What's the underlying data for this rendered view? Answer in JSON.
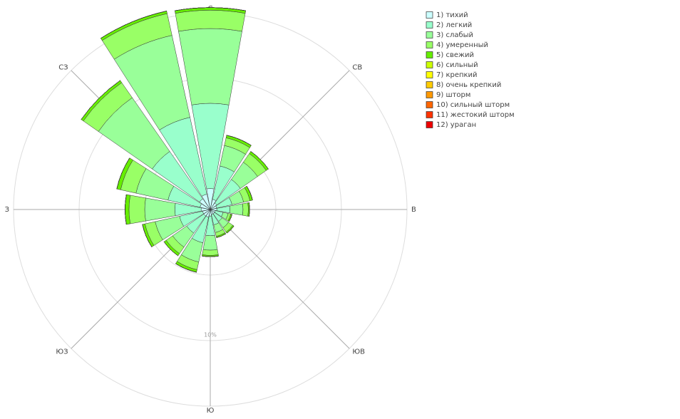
{
  "chart_data": {
    "type": "windrose",
    "categories": [
      "С",
      null,
      "СВ",
      null,
      "В",
      null,
      "ЮВ",
      null,
      "Ю",
      null,
      "ЮЗ",
      null,
      "З",
      null,
      "СЗ",
      null
    ],
    "rlim": [
      0,
      15
    ],
    "rgrid": [
      5,
      10,
      15
    ],
    "rtick_label": {
      "value": 10,
      "label": "10%"
    },
    "legend": "top-right",
    "series": [
      {
        "name": "1) тихий",
        "color": "#ccffff",
        "values": [
          1.6,
          0.8,
          0.6,
          0.5,
          0.5,
          0.4,
          0.4,
          0.4,
          0.5,
          0.6,
          0.6,
          0.6,
          0.7,
          0.8,
          1.0,
          1.2
        ]
      },
      {
        "name": "2) легкий",
        "color": "#99ffcc",
        "values": [
          6.5,
          2.6,
          2.2,
          1.2,
          1.0,
          0.6,
          0.7,
          0.8,
          1.5,
          2.0,
          1.6,
          1.8,
          2.0,
          2.5,
          4.4,
          6.0
        ]
      },
      {
        "name": "3) слабый",
        "color": "#99ff99",
        "values": [
          5.7,
          1.6,
          1.6,
          0.9,
          1.0,
          0.4,
          0.6,
          0.6,
          1.1,
          1.5,
          1.3,
          1.9,
          2.3,
          2.5,
          5.0,
          6.4
        ]
      },
      {
        "name": "4) умеренный",
        "color": "#99ff66",
        "values": [
          1.4,
          0.6,
          0.8,
          0.5,
          0.4,
          0.2,
          0.4,
          0.3,
          0.4,
          0.6,
          0.6,
          0.8,
          1.2,
          1.2,
          1.4,
          1.7
        ]
      },
      {
        "name": "5) свежий",
        "color": "#66ee00",
        "values": [
          0.2,
          0.2,
          0.2,
          0.2,
          0.1,
          0.1,
          0.1,
          0.1,
          0.1,
          0.2,
          0.2,
          0.2,
          0.3,
          0.3,
          0.2,
          0.2
        ]
      },
      {
        "name": "6) сильный",
        "color": "#ccff00",
        "values": [
          0,
          0,
          0,
          0,
          0,
          0,
          0,
          0,
          0,
          0,
          0,
          0,
          0,
          0,
          0,
          0
        ]
      },
      {
        "name": "7) крепкий",
        "color": "#ffff00",
        "values": [
          0,
          0,
          0,
          0,
          0,
          0,
          0,
          0,
          0,
          0,
          0,
          0,
          0,
          0,
          0,
          0
        ]
      },
      {
        "name": "8) очень крепкий",
        "color": "#ffcc00",
        "values": [
          0,
          0,
          0,
          0,
          0,
          0,
          0,
          0,
          0,
          0,
          0,
          0,
          0,
          0,
          0,
          0
        ]
      },
      {
        "name": "9) шторм",
        "color": "#ff9900",
        "values": [
          0,
          0,
          0,
          0,
          0,
          0,
          0,
          0,
          0,
          0,
          0,
          0,
          0,
          0,
          0,
          0
        ]
      },
      {
        "name": "10) сильный шторм",
        "color": "#ff6600",
        "values": [
          0,
          0,
          0,
          0,
          0,
          0,
          0,
          0,
          0,
          0,
          0,
          0,
          0,
          0,
          0,
          0
        ]
      },
      {
        "name": "11) жестокий шторм",
        "color": "#ff3300",
        "values": [
          0,
          0,
          0,
          0,
          0,
          0,
          0,
          0,
          0,
          0,
          0,
          0,
          0,
          0,
          0,
          0
        ]
      },
      {
        "name": "12) ураган",
        "color": "#ee0000",
        "values": [
          0,
          0,
          0,
          0,
          0,
          0,
          0,
          0,
          0,
          0,
          0,
          0,
          0,
          0,
          0,
          0
        ]
      }
    ]
  }
}
